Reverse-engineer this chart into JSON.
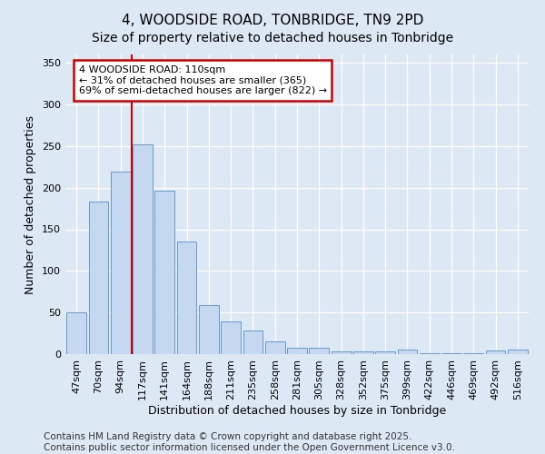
{
  "title": "4, WOODSIDE ROAD, TONBRIDGE, TN9 2PD",
  "subtitle": "Size of property relative to detached houses in Tonbridge",
  "xlabel": "Distribution of detached houses by size in Tonbridge",
  "ylabel": "Number of detached properties",
  "categories": [
    "47sqm",
    "70sqm",
    "94sqm",
    "117sqm",
    "141sqm",
    "164sqm",
    "188sqm",
    "211sqm",
    "235sqm",
    "258sqm",
    "281sqm",
    "305sqm",
    "328sqm",
    "352sqm",
    "375sqm",
    "399sqm",
    "422sqm",
    "446sqm",
    "469sqm",
    "492sqm",
    "516sqm"
  ],
  "values": [
    50,
    183,
    219,
    252,
    196,
    135,
    59,
    39,
    28,
    15,
    8,
    8,
    3,
    3,
    3,
    5,
    1,
    1,
    1,
    4,
    5
  ],
  "bar_color": "#c5d8f0",
  "bar_edge_color": "#6699cc",
  "redline_index": 3,
  "annotation_text": "4 WOODSIDE ROAD: 110sqm\n← 31% of detached houses are smaller (365)\n69% of semi-detached houses are larger (822) →",
  "annotation_box_color": "#ffffff",
  "annotation_box_edge_color": "#cc0000",
  "redline_color": "#cc0000",
  "bg_color": "#dde8f5",
  "plot_bg_color": "#dde8f5",
  "footer": "Contains HM Land Registry data © Crown copyright and database right 2025.\nContains public sector information licensed under the Open Government Licence v3.0.",
  "ylim": [
    0,
    360
  ],
  "yticks": [
    0,
    50,
    100,
    150,
    200,
    250,
    300,
    350
  ],
  "title_fontsize": 11,
  "subtitle_fontsize": 10,
  "axis_label_fontsize": 9,
  "tick_fontsize": 8,
  "footer_fontsize": 7.5,
  "annotation_fontsize": 8
}
